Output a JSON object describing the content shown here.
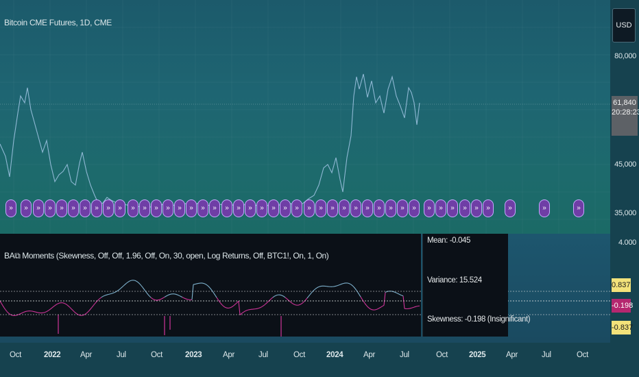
{
  "header": {
    "title": "Bitcoin CME Futures, 1D, CME"
  },
  "price_axis": {
    "currency_button": "USD",
    "labels": [
      "80,000",
      "45,000",
      "35,000"
    ],
    "current_price": "61,840",
    "countdown": "20:28:23"
  },
  "indicator": {
    "title": "BA⧉ Moments (Skewness, Off, Off, 1.96, Off, On, 30, open, Log Returns, Off, BTC1!, On, 1, On)",
    "axis_top": "4.000",
    "tag_upper": "0.837",
    "tag_value": "-0.198",
    "tag_lower": "-0.837",
    "stats": {
      "mean": "Mean: -0.045",
      "variance": "Variance: 15.524",
      "skewness": "Skewness: -0.198 (Insignificant)"
    }
  },
  "time_axis": {
    "labels": [
      {
        "text": "Oct",
        "year": false
      },
      {
        "text": "2022",
        "year": true
      },
      {
        "text": "Apr",
        "year": false
      },
      {
        "text": "Jul",
        "year": false
      },
      {
        "text": "Oct",
        "year": false
      },
      {
        "text": "2023",
        "year": true
      },
      {
        "text": "Apr",
        "year": false
      },
      {
        "text": "Jul",
        "year": false
      },
      {
        "text": "Oct",
        "year": false
      },
      {
        "text": "2024",
        "year": true
      },
      {
        "text": "Apr",
        "year": false
      },
      {
        "text": "Jul",
        "year": false
      },
      {
        "text": "Oct",
        "year": false
      },
      {
        "text": "2025",
        "year": true
      },
      {
        "text": "Apr",
        "year": false
      },
      {
        "text": "Jul",
        "year": false
      },
      {
        "text": "Oct",
        "year": false
      }
    ]
  },
  "markers": {
    "count": 40,
    "glyph": "»"
  },
  "colors": {
    "price_line": "#8fb8d4",
    "skew_positive": "#7fb3cf",
    "skew_negative": "#d0359a",
    "marker_fill": "#6f3ea6",
    "tag_yellow": "#f3e27a",
    "tag_magenta": "#b5276f"
  }
}
